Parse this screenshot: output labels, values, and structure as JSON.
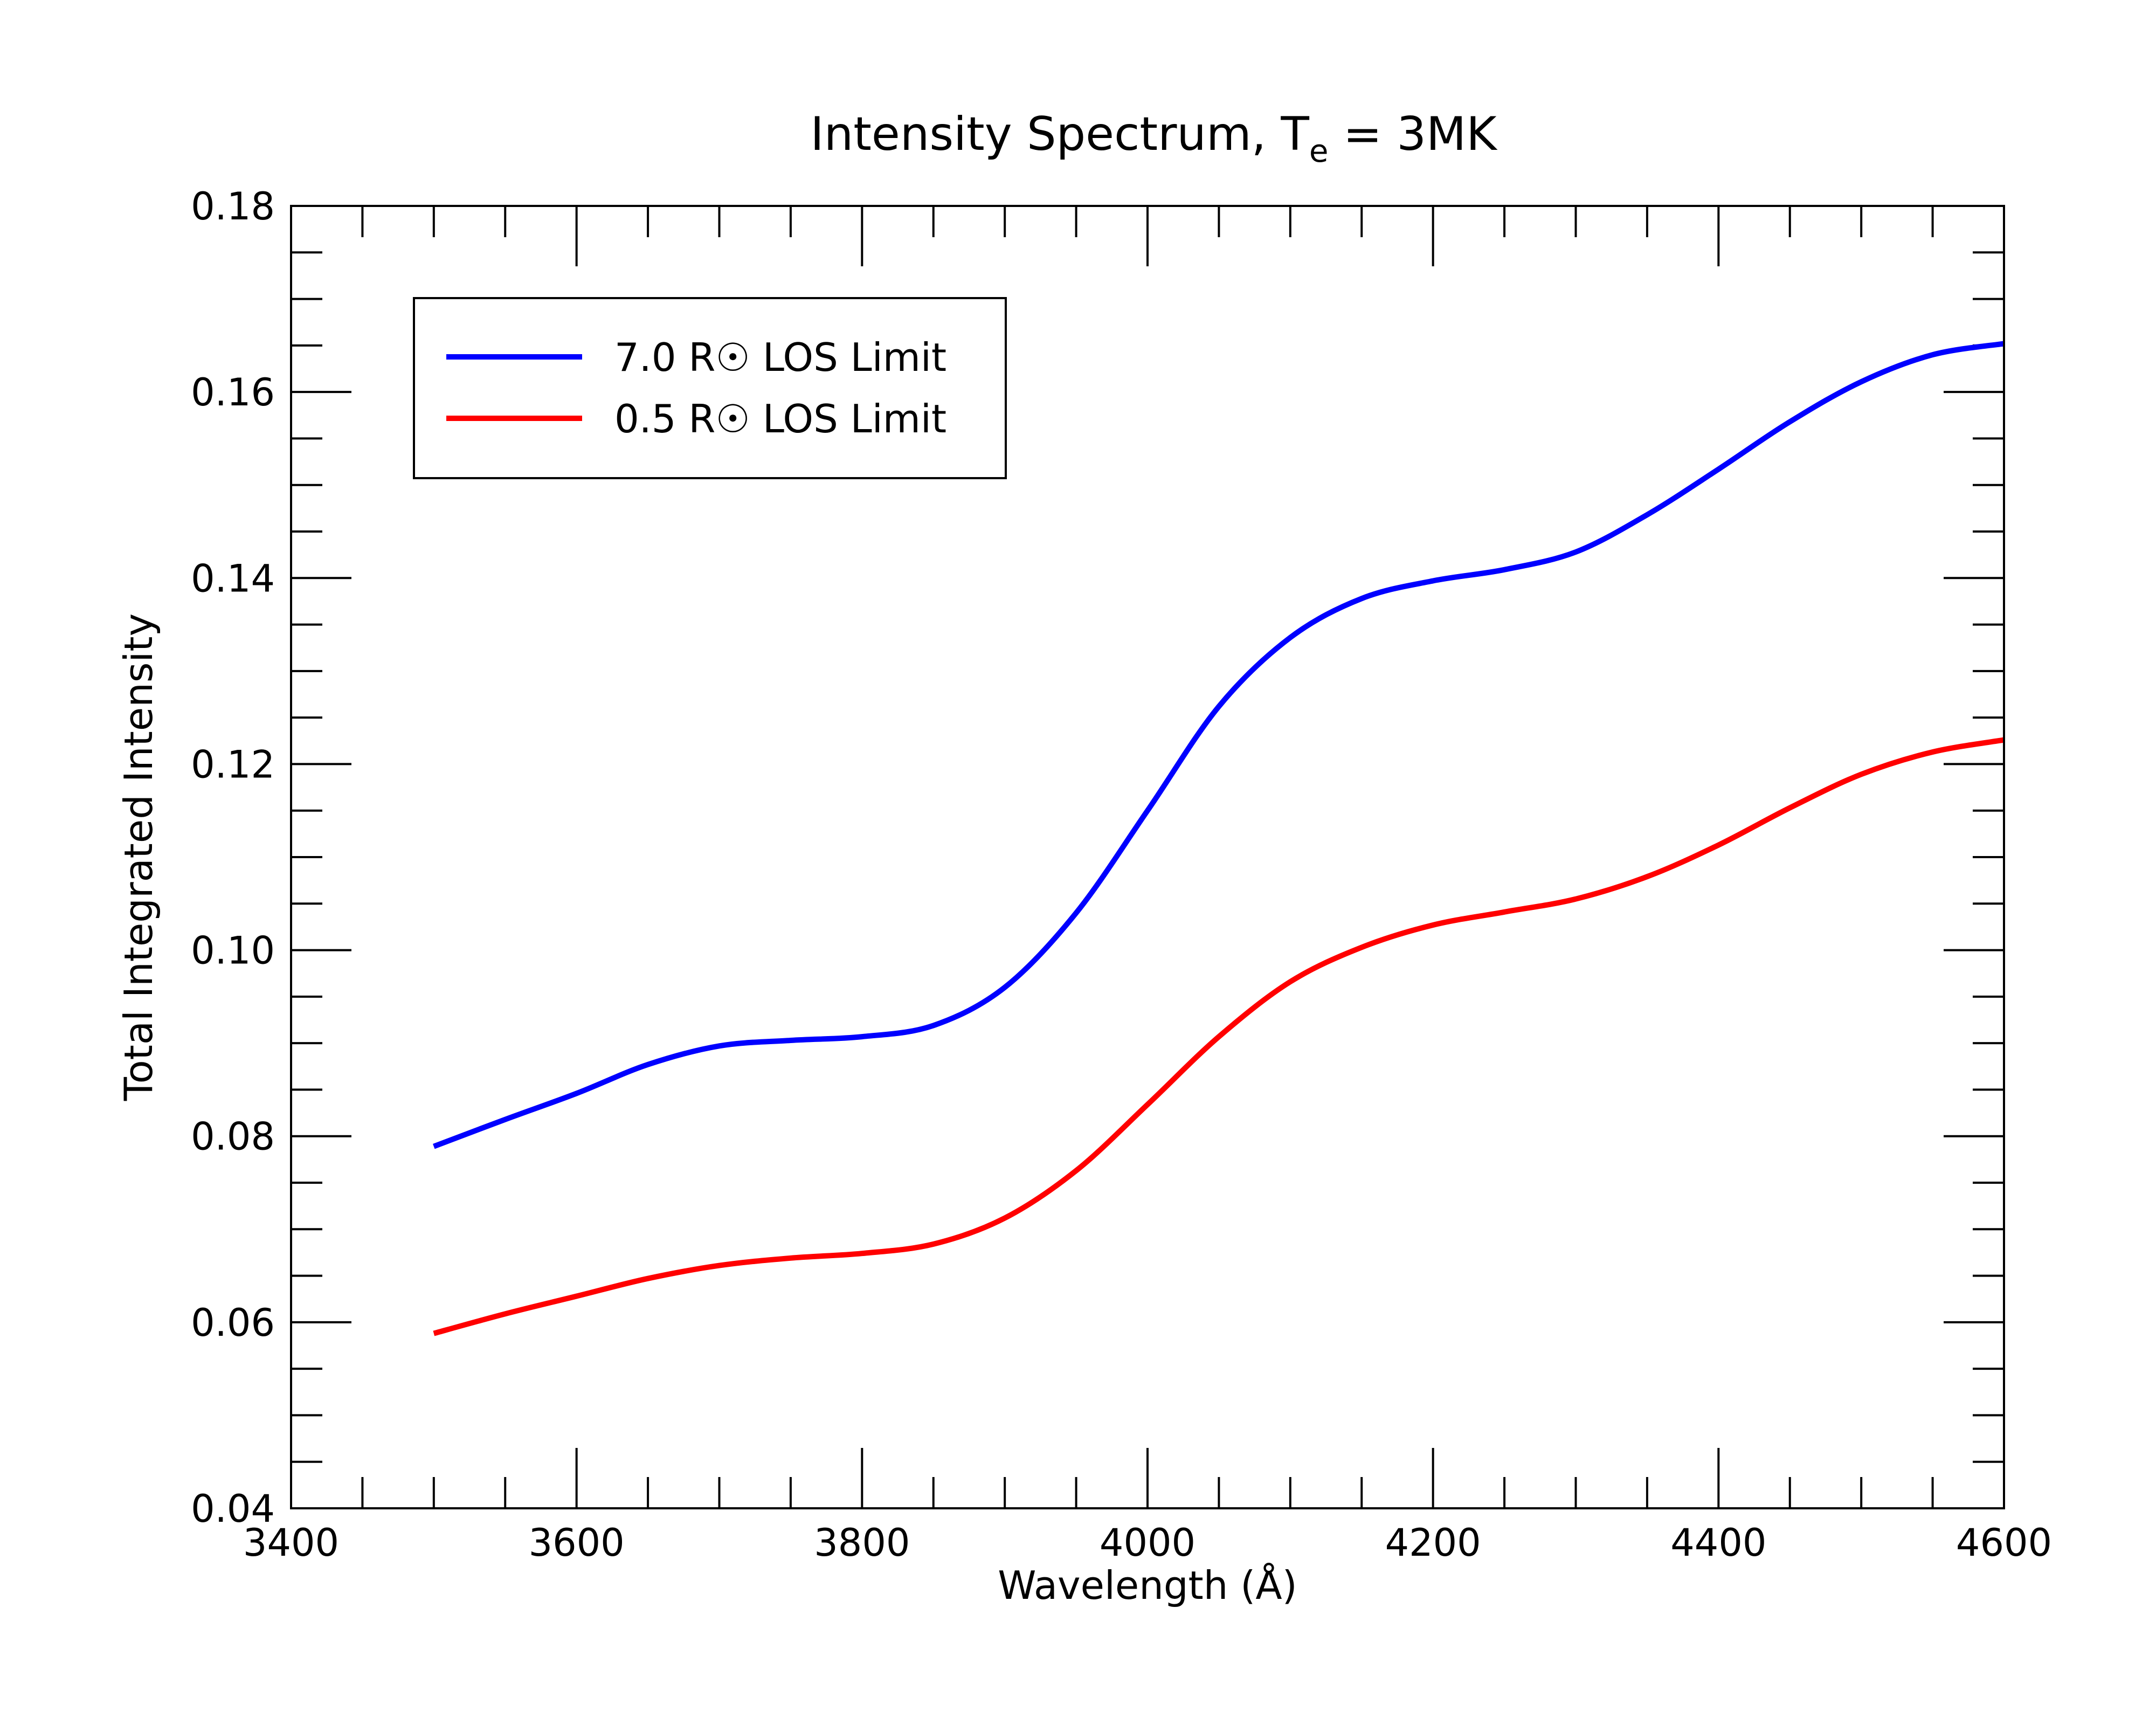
{
  "chart_data": {
    "type": "line",
    "title": {
      "main": "Intensity Spectrum, T",
      "subscript": "e",
      "suffix": " = 3MK"
    },
    "xlabel": "Wavelength (Å)",
    "ylabel": "Total Integrated Intensity",
    "xlim": [
      3400,
      4600
    ],
    "ylim": [
      0.04,
      0.18
    ],
    "x_ticks": [
      3400,
      3600,
      3800,
      4000,
      4200,
      4400,
      4600
    ],
    "x_tick_labels": [
      "3400",
      "3600",
      "3800",
      "4000",
      "4200",
      "4400",
      "4600"
    ],
    "x_minor_step": 50,
    "y_ticks": [
      0.04,
      0.06,
      0.08,
      0.1,
      0.12,
      0.14,
      0.16,
      0.18
    ],
    "y_tick_labels": [
      "0.04",
      "0.06",
      "0.08",
      "0.10",
      "0.12",
      "0.14",
      "0.16",
      "0.18"
    ],
    "y_minor_step": 0.005,
    "grid": false,
    "legend_position": "top-left",
    "series": [
      {
        "name": "7.0 R☉ LOS Limit",
        "color": "#0000ff",
        "x": [
          3500,
          3550,
          3600,
          3650,
          3700,
          3750,
          3800,
          3850,
          3900,
          3950,
          4000,
          4050,
          4100,
          4150,
          4200,
          4250,
          4300,
          4350,
          4400,
          4450,
          4500,
          4550,
          4600
        ],
        "y": [
          0.0789,
          0.0818,
          0.0846,
          0.0877,
          0.0897,
          0.0903,
          0.0907,
          0.0919,
          0.096,
          0.104,
          0.115,
          0.1262,
          0.1336,
          0.1378,
          0.1397,
          0.1409,
          0.1428,
          0.1468,
          0.1517,
          0.1568,
          0.1611,
          0.164,
          0.1652
        ]
      },
      {
        "name": "0.5 R☉ LOS Limit",
        "color": "#ff0000",
        "x": [
          3500,
          3550,
          3600,
          3650,
          3700,
          3750,
          3800,
          3850,
          3900,
          3950,
          4000,
          4050,
          4100,
          4150,
          4200,
          4250,
          4300,
          4350,
          4400,
          4450,
          4500,
          4550,
          4600
        ],
        "y": [
          0.0588,
          0.0609,
          0.0628,
          0.0647,
          0.0661,
          0.0669,
          0.0674,
          0.0684,
          0.0712,
          0.0763,
          0.0834,
          0.0907,
          0.0966,
          0.1003,
          0.1027,
          0.1041,
          0.1055,
          0.1079,
          0.1113,
          0.1153,
          0.1189,
          0.1213,
          0.1226
        ]
      }
    ]
  }
}
